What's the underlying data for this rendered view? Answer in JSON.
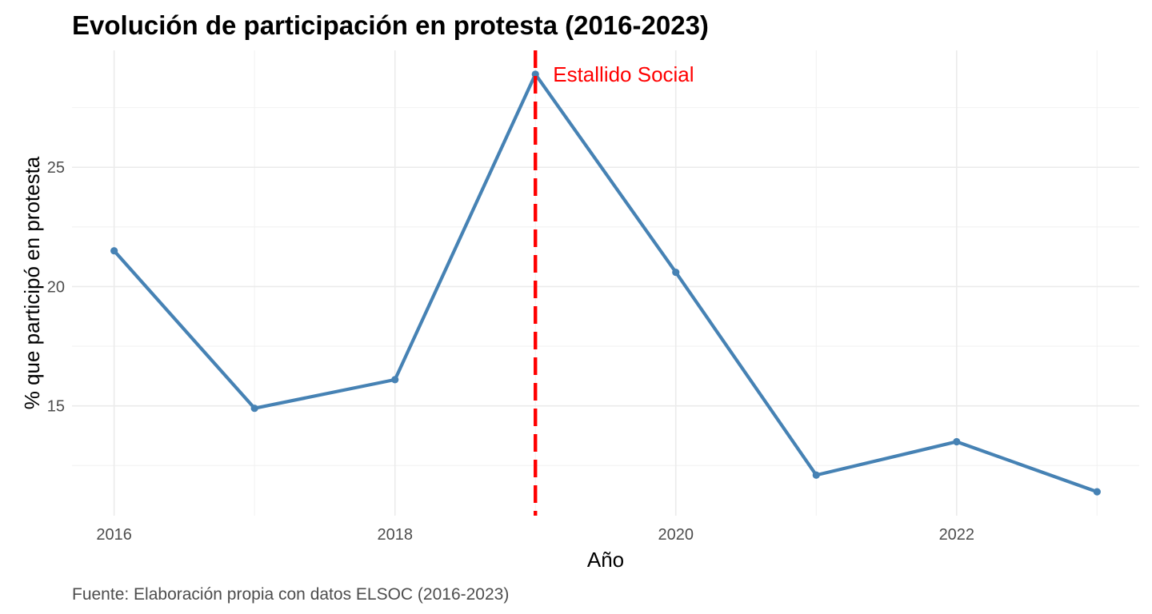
{
  "chart_data": {
    "type": "line",
    "title": "Evolución de participación en protesta (2016-2023)",
    "xlabel": "Año",
    "ylabel": "% que participó en protesta",
    "caption": "Fuente: Elaboración propia con datos ELSOC (2016-2023)",
    "x": [
      2016,
      2017,
      2018,
      2019,
      2020,
      2021,
      2022,
      2023
    ],
    "values": [
      21.5,
      14.9,
      16.1,
      28.9,
      20.6,
      12.1,
      13.5,
      11.4
    ],
    "xlim": [
      2015.7,
      2023.3
    ],
    "ylim": [
      10.4,
      29.9
    ],
    "x_ticks": [
      2016,
      2018,
      2020,
      2022
    ],
    "x_tick_labels": [
      "2016",
      "2018",
      "2020",
      "2022"
    ],
    "y_ticks": [
      15,
      20,
      25
    ],
    "y_tick_labels": [
      "15",
      "20",
      "25"
    ],
    "grid": true,
    "legend": "none",
    "line_color": "#4682b4",
    "annotation": {
      "x": 2019,
      "label": "Estallido Social",
      "color": "#ff0000",
      "line_style": "dashed"
    }
  }
}
